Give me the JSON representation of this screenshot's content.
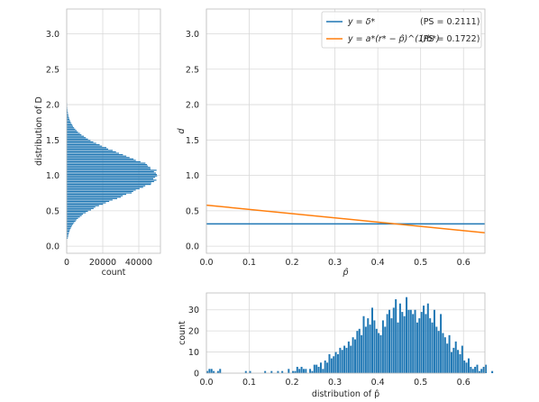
{
  "colors": {
    "blue": "#1f77b4",
    "orange": "#ff7f0e",
    "grid": "#d9d9d9"
  },
  "chart_data": [
    {
      "id": "main",
      "type": "line",
      "xlabel": "p̂",
      "ylabel": "d",
      "xlim": [
        0.0,
        0.65
      ],
      "ylim": [
        -0.1,
        3.35
      ],
      "xticks": [
        "0.0",
        "0.1",
        "0.2",
        "0.3",
        "0.4",
        "0.5",
        "0.6"
      ],
      "yticks": [
        "0.0",
        "0.5",
        "1.0",
        "1.5",
        "2.0",
        "2.5",
        "3.0"
      ],
      "grid": true,
      "legend_position": "top-right",
      "series": [
        {
          "key": "flat",
          "name": "y = δ*",
          "ps": "(PS = 0.2111)",
          "color": "#1f77b4",
          "x": [
            0.0,
            0.65
          ],
          "y": [
            0.315,
            0.315
          ]
        },
        {
          "key": "curve",
          "name": "y = a*(r* − p̂)^(1/b*)",
          "ps": "(PS = 0.1722)",
          "color": "#ff7f0e",
          "x": [
            0.0,
            0.65
          ],
          "y": [
            0.58,
            0.19
          ]
        }
      ]
    },
    {
      "id": "left_hist",
      "type": "bar",
      "orientation": "horizontal",
      "xlabel": "count",
      "ylabel": "distribution of D",
      "xlim": [
        0,
        52000
      ],
      "ylim": [
        -0.1,
        3.35
      ],
      "xticks": [
        "0",
        "20000",
        "40000"
      ],
      "yticks": [
        "0.0",
        "0.5",
        "1.0",
        "1.5",
        "2.0",
        "2.5",
        "3.0"
      ],
      "bin_width": 0.02,
      "bins_start": 0.1,
      "bins_end": 2.5,
      "distribution": "approx. normal, mean ≈ 1.00, sd ≈ 0.30, peak ≈ 50000"
    },
    {
      "id": "bottom_hist",
      "type": "bar",
      "xlabel": "distribution of p̂",
      "ylabel": "count",
      "xlim": [
        0.0,
        0.65
      ],
      "ylim": [
        0,
        38
      ],
      "xticks": [
        "0.0",
        "0.1",
        "0.2",
        "0.3",
        "0.4",
        "0.5",
        "0.6"
      ],
      "yticks": [
        "0",
        "10",
        "20",
        "30"
      ],
      "bin_width": 0.005,
      "x_start": 0.0,
      "values": [
        1,
        2,
        2,
        1,
        0,
        1,
        2,
        0,
        0,
        0,
        0,
        0,
        0,
        0,
        0,
        0,
        0,
        0,
        1,
        0,
        1,
        0,
        0,
        0,
        0,
        0,
        0,
        1,
        0,
        0,
        1,
        0,
        0,
        1,
        0,
        1,
        0,
        0,
        2,
        0,
        1,
        1,
        3,
        2,
        3,
        2,
        2,
        0,
        2,
        1,
        4,
        4,
        3,
        5,
        2,
        6,
        5,
        9,
        7,
        8,
        10,
        9,
        12,
        11,
        13,
        12,
        15,
        13,
        17,
        16,
        20,
        21,
        18,
        27,
        22,
        26,
        23,
        31,
        25,
        21,
        19,
        18,
        25,
        22,
        28,
        30,
        26,
        31,
        35,
        24,
        33,
        29,
        27,
        36,
        30,
        30,
        28,
        30,
        24,
        26,
        29,
        32,
        28,
        33,
        26,
        24,
        30,
        22,
        20,
        28,
        19,
        17,
        14,
        18,
        10,
        12,
        15,
        11,
        9,
        13,
        6,
        5,
        7,
        3,
        2,
        3,
        4,
        1,
        2,
        3,
        4,
        0,
        0,
        1,
        0,
        0
      ]
    }
  ]
}
